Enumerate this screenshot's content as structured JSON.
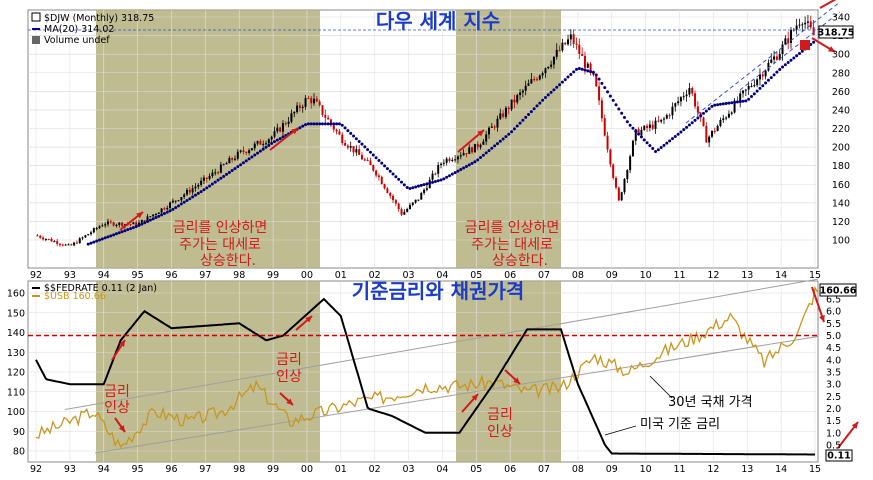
{
  "chart_data": [
    {
      "type": "line",
      "title": "다우 세계 지수",
      "legend": [
        {
          "label": "$DJW (Monthly) 318.75",
          "color": "#000000"
        },
        {
          "label": "MA(20) 314.02",
          "color": "#000080"
        },
        {
          "label": "Volume undef",
          "color": "#000000"
        }
      ],
      "ylim": [
        80,
        350
      ],
      "yticks": [
        "100",
        "120",
        "140",
        "160",
        "180",
        "200",
        "220",
        "240",
        "260",
        "280",
        "300",
        "320",
        "340"
      ],
      "last_value": "318.75",
      "x_labels": [
        "92",
        "93",
        "94",
        "95",
        "96",
        "97",
        "98",
        "99",
        "00",
        "01",
        "02",
        "03",
        "04",
        "05",
        "06",
        "07",
        "08",
        "09",
        "10",
        "11",
        "12",
        "13",
        "14",
        "15"
      ],
      "series": [
        {
          "name": "$DJW (Monthly)",
          "x": [
            1992.0,
            1993.0,
            1994.0,
            1995.0,
            1996.0,
            1997.0,
            1998.0,
            1999.0,
            2000.0,
            2000.2,
            2001.0,
            2002.0,
            2002.8,
            2003.3,
            2004.0,
            2005.0,
            2006.0,
            2007.0,
            2007.8,
            2008.5,
            2009.2,
            2009.7,
            2010.5,
            2011.3,
            2011.8,
            2012.5,
            2013.0,
            2014.0,
            2014.6,
            2015.0
          ],
          "values": [
            105,
            93,
            118,
            117,
            140,
            165,
            193,
            212,
            252,
            250,
            210,
            175,
            128,
            145,
            185,
            200,
            245,
            285,
            318,
            270,
            140,
            215,
            228,
            265,
            208,
            240,
            262,
            305,
            340,
            318
          ]
        },
        {
          "name": "MA(20)",
          "x": [
            1993.5,
            1995.0,
            1996.0,
            1997.0,
            1998.0,
            1999.0,
            2000.0,
            2001.0,
            2002.0,
            2003.0,
            2004.0,
            2005.0,
            2006.0,
            2007.0,
            2008.0,
            2008.5,
            2009.5,
            2010.3,
            2011.0,
            2012.0,
            2013.0,
            2014.0,
            2015.0
          ],
          "values": [
            95,
            115,
            132,
            155,
            180,
            205,
            225,
            225,
            190,
            155,
            165,
            185,
            215,
            252,
            285,
            280,
            225,
            195,
            215,
            245,
            250,
            285,
            314
          ]
        }
      ],
      "annotations": [
        "금리를 인상하면",
        "주가는 대세로",
        "상승한다.",
        "금리를 인상하면",
        "주가는 대세로",
        "상승한다."
      ]
    },
    {
      "type": "line",
      "title": "기준금리와 채권가격",
      "legend": [
        {
          "label": "$$FEDRATE 0.11 (2 Jan)",
          "color": "#000000"
        },
        {
          "label": "$USB 160.66",
          "color": "#c8961e"
        }
      ],
      "yticks_left": [
        "80",
        "90",
        "100",
        "110",
        "120",
        "130",
        "140",
        "150",
        "160"
      ],
      "yticks_right": [
        "0.5",
        "1.0",
        "1.5",
        "2.0",
        "2.5",
        "3.0",
        "3.5",
        "4.0",
        "4.5",
        "5.0",
        "5.5",
        "6.0",
        "6.5"
      ],
      "last_values": [
        "160.66",
        "0.11"
      ],
      "x_labels": [
        "92",
        "93",
        "94",
        "95",
        "96",
        "97",
        "98",
        "99",
        "00",
        "01",
        "02",
        "03",
        "04",
        "05",
        "06",
        "07",
        "08",
        "09",
        "10",
        "11",
        "12",
        "13",
        "14",
        "15"
      ],
      "series": [
        {
          "name": "$$FEDRATE",
          "axis": "right",
          "x": [
            1992.0,
            1992.3,
            1993.0,
            1994.0,
            1994.5,
            1995.2,
            1996.0,
            1998.0,
            1998.8,
            1999.3,
            2000.5,
            2001.0,
            2001.8,
            2002.5,
            2003.5,
            2004.5,
            2005.5,
            2006.5,
            2007.5,
            2008.0,
            2008.8,
            2009.0,
            2015.0
          ],
          "values": [
            4.0,
            3.2,
            3.0,
            3.0,
            4.8,
            6.0,
            5.3,
            5.5,
            4.8,
            5.0,
            6.5,
            5.8,
            2.0,
            1.7,
            1.0,
            1.0,
            3.0,
            5.25,
            5.25,
            3.0,
            0.5,
            0.15,
            0.11
          ]
        },
        {
          "name": "$USB",
          "axis": "left",
          "x": [
            1992.0,
            1993.0,
            1993.7,
            1994.5,
            1995.5,
            1996.5,
            1997.5,
            1998.5,
            1999.5,
            2000.5,
            2001.5,
            2002.5,
            2003.5,
            2004.5,
            2005.5,
            2006.5,
            2007.5,
            2008.5,
            2009.5,
            2010.5,
            2011.5,
            2012.5,
            2013.5,
            2014.5,
            2015.0
          ],
          "values": [
            88,
            95,
            100,
            82,
            100,
            95,
            100,
            113,
            95,
            100,
            105,
            108,
            113,
            113,
            115,
            110,
            112,
            128,
            120,
            130,
            138,
            148,
            125,
            140,
            160.66
          ]
        }
      ],
      "annotations": [
        "금리",
        "인상",
        "금리",
        "인상",
        "금리",
        "인상",
        "30년 국채 가격",
        "미국 기준 금리"
      ]
    }
  ],
  "colors": {
    "shade": "#b4b07e",
    "price_up": "#000000",
    "price_down": "#cc0000",
    "ma": "#000080",
    "fed": "#000000",
    "usb": "#c8961e",
    "title_blue": "#1a3cc8",
    "note_red": "#d11a1a",
    "ref_red": "#cc0000",
    "channel": "#a0a0a0"
  }
}
